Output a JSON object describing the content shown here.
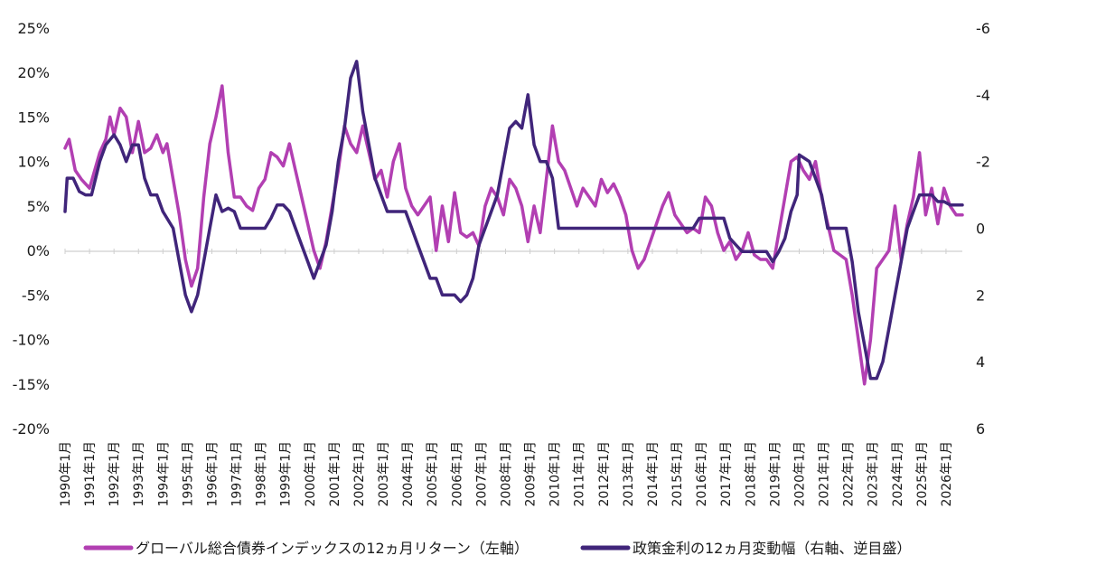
{
  "chart_data": {
    "type": "line",
    "title": "",
    "x_start": "1990-01",
    "x_end": "2026-09",
    "x_tick_labels": [
      "1990年1月",
      "1991年1月",
      "1992年1月",
      "1993年1月",
      "1994年1月",
      "1995年1月",
      "1996年1月",
      "1997年1月",
      "1998年1月",
      "1999年1月",
      "2000年1月",
      "2001年1月",
      "2002年1月",
      "2003年1月",
      "2004年1月",
      "2005年1月",
      "2006年1月",
      "2007年1月",
      "2008年1月",
      "2009年1月",
      "2010年1月",
      "2011年1月",
      "2012年1月",
      "2013年1月",
      "2014年1月",
      "2015年1月",
      "2016年1月",
      "2017年1月",
      "2018年1月",
      "2019年1月",
      "2020年1月",
      "2021年1月",
      "2022年1月",
      "2023年1月",
      "2024年1月",
      "2025年1月",
      "2026年1月"
    ],
    "y_left": {
      "min": -20,
      "max": 25,
      "step": 5,
      "tick_labels": [
        "-20%",
        "-15%",
        "-10%",
        "-5%",
        "0%",
        "5%",
        "10%",
        "15%",
        "20%",
        "25%"
      ]
    },
    "y_right": {
      "min": -6,
      "max": 6,
      "step": 2,
      "inverted": true,
      "tick_labels": [
        "-6",
        "-4",
        "-2",
        "0",
        "2",
        "4",
        "6"
      ]
    },
    "series": [
      {
        "name": "グローバル総合債券インデックスの12ヵ月リターン（左軸）",
        "axis": "left",
        "color": "#b23fb2",
        "points": [
          [
            "1990-01",
            11.5
          ],
          [
            "1990-03",
            12.5
          ],
          [
            "1990-06",
            9
          ],
          [
            "1990-09",
            8
          ],
          [
            "1991-01",
            7
          ],
          [
            "1991-06",
            11
          ],
          [
            "1991-09",
            12.5
          ],
          [
            "1991-11",
            15
          ],
          [
            "1992-01",
            13
          ],
          [
            "1992-04",
            16
          ],
          [
            "1992-07",
            15
          ],
          [
            "1992-10",
            11
          ],
          [
            "1993-01",
            14.5
          ],
          [
            "1993-04",
            11
          ],
          [
            "1993-07",
            11.5
          ],
          [
            "1993-10",
            13
          ],
          [
            "1994-01",
            11
          ],
          [
            "1994-03",
            12
          ],
          [
            "1994-06",
            8
          ],
          [
            "1994-09",
            4
          ],
          [
            "1994-12",
            -1
          ],
          [
            "1995-03",
            -4
          ],
          [
            "1995-06",
            -2
          ],
          [
            "1995-09",
            6
          ],
          [
            "1995-12",
            12
          ],
          [
            "1996-03",
            15
          ],
          [
            "1996-06",
            18.5
          ],
          [
            "1996-09",
            11
          ],
          [
            "1996-12",
            6
          ],
          [
            "1997-03",
            6
          ],
          [
            "1997-06",
            5
          ],
          [
            "1997-09",
            4.5
          ],
          [
            "1997-12",
            7
          ],
          [
            "1998-03",
            8
          ],
          [
            "1998-06",
            11
          ],
          [
            "1998-09",
            10.5
          ],
          [
            "1998-12",
            9.5
          ],
          [
            "1999-03",
            12
          ],
          [
            "1999-06",
            9
          ],
          [
            "1999-09",
            6
          ],
          [
            "1999-12",
            3
          ],
          [
            "2000-03",
            0
          ],
          [
            "2000-06",
            -2
          ],
          [
            "2000-09",
            1
          ],
          [
            "2000-12",
            5
          ],
          [
            "2001-03",
            9
          ],
          [
            "2001-06",
            14
          ],
          [
            "2001-09",
            12
          ],
          [
            "2001-12",
            11
          ],
          [
            "2002-03",
            14
          ],
          [
            "2002-06",
            11
          ],
          [
            "2002-09",
            8
          ],
          [
            "2002-12",
            9
          ],
          [
            "2003-03",
            6
          ],
          [
            "2003-06",
            10
          ],
          [
            "2003-09",
            12
          ],
          [
            "2003-12",
            7
          ],
          [
            "2004-03",
            5
          ],
          [
            "2004-06",
            4
          ],
          [
            "2004-09",
            5
          ],
          [
            "2004-12",
            6
          ],
          [
            "2005-03",
            0
          ],
          [
            "2005-06",
            5
          ],
          [
            "2005-09",
            1
          ],
          [
            "2005-12",
            6.5
          ],
          [
            "2006-03",
            2
          ],
          [
            "2006-06",
            1.5
          ],
          [
            "2006-09",
            2
          ],
          [
            "2006-12",
            0.5
          ],
          [
            "2007-03",
            5
          ],
          [
            "2007-06",
            7
          ],
          [
            "2007-09",
            6
          ],
          [
            "2007-12",
            4
          ],
          [
            "2008-03",
            8
          ],
          [
            "2008-06",
            7
          ],
          [
            "2008-09",
            5
          ],
          [
            "2008-12",
            1
          ],
          [
            "2009-03",
            5
          ],
          [
            "2009-06",
            2
          ],
          [
            "2009-09",
            8
          ],
          [
            "2009-12",
            14
          ],
          [
            "2010-03",
            10
          ],
          [
            "2010-06",
            9
          ],
          [
            "2010-09",
            7
          ],
          [
            "2010-12",
            5
          ],
          [
            "2011-03",
            7
          ],
          [
            "2011-06",
            6
          ],
          [
            "2011-09",
            5
          ],
          [
            "2011-12",
            8
          ],
          [
            "2012-03",
            6.5
          ],
          [
            "2012-06",
            7.5
          ],
          [
            "2012-09",
            6
          ],
          [
            "2012-12",
            4
          ],
          [
            "2013-03",
            0
          ],
          [
            "2013-06",
            -2
          ],
          [
            "2013-09",
            -1
          ],
          [
            "2013-12",
            1
          ],
          [
            "2014-03",
            3
          ],
          [
            "2014-06",
            5
          ],
          [
            "2014-09",
            6.5
          ],
          [
            "2014-12",
            4
          ],
          [
            "2015-03",
            3
          ],
          [
            "2015-06",
            2
          ],
          [
            "2015-09",
            2.5
          ],
          [
            "2015-12",
            2
          ],
          [
            "2016-03",
            6
          ],
          [
            "2016-06",
            5
          ],
          [
            "2016-09",
            2
          ],
          [
            "2016-12",
            0
          ],
          [
            "2017-03",
            1
          ],
          [
            "2017-06",
            -1
          ],
          [
            "2017-09",
            0
          ],
          [
            "2017-12",
            2
          ],
          [
            "2018-03",
            -0.5
          ],
          [
            "2018-06",
            -1
          ],
          [
            "2018-09",
            -1
          ],
          [
            "2018-12",
            -2
          ],
          [
            "2019-03",
            2
          ],
          [
            "2019-06",
            6
          ],
          [
            "2019-09",
            10
          ],
          [
            "2019-12",
            10.5
          ],
          [
            "2020-03",
            9
          ],
          [
            "2020-06",
            8
          ],
          [
            "2020-09",
            10
          ],
          [
            "2020-12",
            6
          ],
          [
            "2021-03",
            3
          ],
          [
            "2021-06",
            0
          ],
          [
            "2021-09",
            -0.5
          ],
          [
            "2021-12",
            -1
          ],
          [
            "2022-03",
            -5
          ],
          [
            "2022-06",
            -10
          ],
          [
            "2022-09",
            -15
          ],
          [
            "2022-12",
            -10
          ],
          [
            "2023-03",
            -2
          ],
          [
            "2023-06",
            -1
          ],
          [
            "2023-09",
            0
          ],
          [
            "2023-12",
            5
          ],
          [
            "2024-03",
            -1
          ],
          [
            "2024-06",
            3
          ],
          [
            "2024-09",
            6
          ],
          [
            "2024-12",
            11
          ],
          [
            "2025-03",
            4
          ],
          [
            "2025-06",
            7
          ],
          [
            "2025-09",
            3
          ],
          [
            "2025-12",
            7
          ],
          [
            "2026-03",
            5
          ],
          [
            "2026-06",
            4
          ],
          [
            "2026-09",
            4
          ]
        ]
      },
      {
        "name": "政策金利の12ヵ月変動幅（右軸、逆目盛）",
        "axis": "right",
        "color": "#40257a",
        "points": [
          [
            "1990-01",
            -0.5
          ],
          [
            "1990-02",
            -1.5
          ],
          [
            "1990-05",
            -1.5
          ],
          [
            "1990-08",
            -1.1
          ],
          [
            "1990-11",
            -1.0
          ],
          [
            "1991-02",
            -1.0
          ],
          [
            "1991-06",
            -2.0
          ],
          [
            "1991-09",
            -2.5
          ],
          [
            "1992-01",
            -2.8
          ],
          [
            "1992-04",
            -2.5
          ],
          [
            "1992-07",
            -2.0
          ],
          [
            "1992-10",
            -2.5
          ],
          [
            "1993-01",
            -2.5
          ],
          [
            "1993-04",
            -1.5
          ],
          [
            "1993-07",
            -1.0
          ],
          [
            "1993-10",
            -1.0
          ],
          [
            "1994-01",
            -0.5
          ],
          [
            "1994-06",
            0
          ],
          [
            "1994-09",
            1.0
          ],
          [
            "1994-12",
            2.0
          ],
          [
            "1995-03",
            2.5
          ],
          [
            "1995-06",
            2.0
          ],
          [
            "1995-09",
            1.0
          ],
          [
            "1995-12",
            0
          ],
          [
            "1996-03",
            -1.0
          ],
          [
            "1996-06",
            -0.5
          ],
          [
            "1996-09",
            -0.6
          ],
          [
            "1996-12",
            -0.5
          ],
          [
            "1997-03",
            0
          ],
          [
            "1997-06",
            0
          ],
          [
            "1997-12",
            0
          ],
          [
            "1998-03",
            0
          ],
          [
            "1998-06",
            -0.3
          ],
          [
            "1998-09",
            -0.7
          ],
          [
            "1998-12",
            -0.7
          ],
          [
            "1999-03",
            -0.5
          ],
          [
            "1999-06",
            0
          ],
          [
            "1999-09",
            0.5
          ],
          [
            "1999-12",
            1.0
          ],
          [
            "2000-03",
            1.5
          ],
          [
            "2000-06",
            1.0
          ],
          [
            "2000-09",
            0.5
          ],
          [
            "2000-12",
            -0.5
          ],
          [
            "2001-03",
            -2.0
          ],
          [
            "2001-06",
            -3.0
          ],
          [
            "2001-09",
            -4.5
          ],
          [
            "2001-12",
            -5.0
          ],
          [
            "2002-03",
            -3.5
          ],
          [
            "2002-06",
            -2.5
          ],
          [
            "2002-09",
            -1.5
          ],
          [
            "2002-12",
            -1.0
          ],
          [
            "2003-03",
            -0.5
          ],
          [
            "2003-06",
            -0.5
          ],
          [
            "2003-09",
            -0.5
          ],
          [
            "2003-12",
            -0.5
          ],
          [
            "2004-03",
            0
          ],
          [
            "2004-06",
            0.5
          ],
          [
            "2004-09",
            1.0
          ],
          [
            "2004-12",
            1.5
          ],
          [
            "2005-03",
            1.5
          ],
          [
            "2005-06",
            2.0
          ],
          [
            "2005-09",
            2.0
          ],
          [
            "2005-12",
            2.0
          ],
          [
            "2006-03",
            2.2
          ],
          [
            "2006-06",
            2.0
          ],
          [
            "2006-09",
            1.5
          ],
          [
            "2006-12",
            0.5
          ],
          [
            "2007-03",
            0
          ],
          [
            "2007-06",
            -0.5
          ],
          [
            "2007-09",
            -1.0
          ],
          [
            "2007-12",
            -2.0
          ],
          [
            "2008-03",
            -3.0
          ],
          [
            "2008-06",
            -3.2
          ],
          [
            "2008-09",
            -3.0
          ],
          [
            "2008-12",
            -4.0
          ],
          [
            "2009-03",
            -2.5
          ],
          [
            "2009-06",
            -2.0
          ],
          [
            "2009-09",
            -2.0
          ],
          [
            "2009-12",
            -1.5
          ],
          [
            "2010-03",
            0
          ],
          [
            "2010-06",
            0
          ],
          [
            "2011-01",
            0
          ],
          [
            "2012-01",
            0
          ],
          [
            "2013-01",
            0
          ],
          [
            "2014-01",
            0
          ],
          [
            "2015-01",
            0
          ],
          [
            "2015-09",
            0
          ],
          [
            "2015-12",
            -0.3
          ],
          [
            "2016-06",
            -0.3
          ],
          [
            "2016-12",
            -0.3
          ],
          [
            "2017-03",
            0.3
          ],
          [
            "2017-06",
            0.5
          ],
          [
            "2017-09",
            0.7
          ],
          [
            "2018-03",
            0.7
          ],
          [
            "2018-09",
            0.7
          ],
          [
            "2018-12",
            1.0
          ],
          [
            "2019-03",
            0.7
          ],
          [
            "2019-06",
            0.3
          ],
          [
            "2019-09",
            -0.5
          ],
          [
            "2019-12",
            -1.0
          ],
          [
            "2020-01",
            -2.2
          ],
          [
            "2020-06",
            -2.0
          ],
          [
            "2020-09",
            -1.5
          ],
          [
            "2020-12",
            -1.0
          ],
          [
            "2021-03",
            0
          ],
          [
            "2021-06",
            0
          ],
          [
            "2021-09",
            0
          ],
          [
            "2021-12",
            0
          ],
          [
            "2022-03",
            1.0
          ],
          [
            "2022-06",
            2.5
          ],
          [
            "2022-09",
            3.5
          ],
          [
            "2022-12",
            4.5
          ],
          [
            "2023-03",
            4.5
          ],
          [
            "2023-06",
            4.0
          ],
          [
            "2023-09",
            3.0
          ],
          [
            "2023-12",
            2.0
          ],
          [
            "2024-03",
            1.0
          ],
          [
            "2024-06",
            0
          ],
          [
            "2024-09",
            -0.5
          ],
          [
            "2024-12",
            -1.0
          ],
          [
            "2025-03",
            -1.0
          ],
          [
            "2025-06",
            -1.0
          ],
          [
            "2025-09",
            -0.8
          ],
          [
            "2025-12",
            -0.8
          ],
          [
            "2026-03",
            -0.7
          ],
          [
            "2026-09",
            -0.7
          ]
        ]
      }
    ]
  }
}
